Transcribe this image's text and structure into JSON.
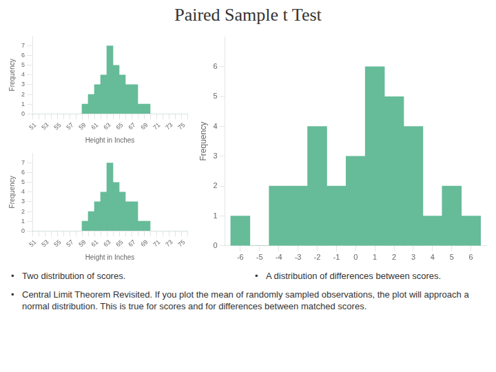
{
  "title": "Paired Sample t Test",
  "annotations": [
    "Two distribution of scores.",
    "A distribution of differences between scores.",
    "Central Limit Theorem Revisited. If you plot the mean of randomly sampled observations, the plot will approach a normal distribution. This is true for scores and for differences between matched scores."
  ],
  "chart_data": [
    {
      "type": "bar",
      "categories": [
        "51",
        null,
        "53",
        null,
        "55",
        null,
        "57",
        null,
        "59",
        null,
        "61",
        null,
        "63",
        null,
        "65",
        null,
        "67",
        null,
        "69",
        null,
        "71",
        null,
        "73",
        null,
        "75"
      ],
      "values": [
        0,
        0,
        0,
        0,
        0,
        0,
        0,
        0,
        1,
        2,
        3,
        4,
        7,
        5,
        4,
        3,
        3,
        1,
        1,
        0,
        0,
        0,
        0,
        0,
        0
      ],
      "color": "#66bb99",
      "xlabel": "Height in Inches",
      "ylabel": "Frequency",
      "ylim": [
        0,
        8
      ],
      "yticks": [
        0,
        1,
        2,
        3,
        4,
        5,
        6,
        7
      ],
      "grid": false
    },
    {
      "type": "bar",
      "categories": [
        "51",
        null,
        "53",
        null,
        "55",
        null,
        "57",
        null,
        "59",
        null,
        "61",
        null,
        "63",
        null,
        "65",
        null,
        "67",
        null,
        "69",
        null,
        "71",
        null,
        "73",
        null,
        "75"
      ],
      "values": [
        0,
        0,
        0,
        0,
        0,
        0,
        0,
        0,
        1,
        2,
        3,
        4,
        7,
        5,
        4,
        3,
        3,
        1,
        1,
        0,
        0,
        0,
        0,
        0,
        0
      ],
      "color": "#66bb99",
      "xlabel": "Height in Inches",
      "ylabel": "Frequency",
      "ylim": [
        0,
        8
      ],
      "yticks": [
        0,
        1,
        2,
        3,
        4,
        5,
        6,
        7
      ],
      "grid": false
    },
    {
      "type": "bar",
      "x": [
        -6,
        -5,
        -4,
        -3,
        -2,
        -1,
        0,
        1,
        2,
        3,
        4,
        5,
        6
      ],
      "values": [
        1,
        0,
        2,
        2,
        4,
        2,
        3,
        6,
        5,
        4,
        1,
        2,
        1
      ],
      "color": "#66bb99",
      "ylabel": "Frequency",
      "xlim": [
        -6.8,
        6.8
      ],
      "xticks": [
        -6,
        -5,
        -4,
        -3,
        -2,
        -1,
        0,
        1,
        2,
        3,
        4,
        5,
        6
      ],
      "ylim": [
        0,
        7
      ],
      "yticks": [
        0,
        1,
        2,
        3,
        4,
        5,
        6
      ],
      "grid": false
    }
  ]
}
